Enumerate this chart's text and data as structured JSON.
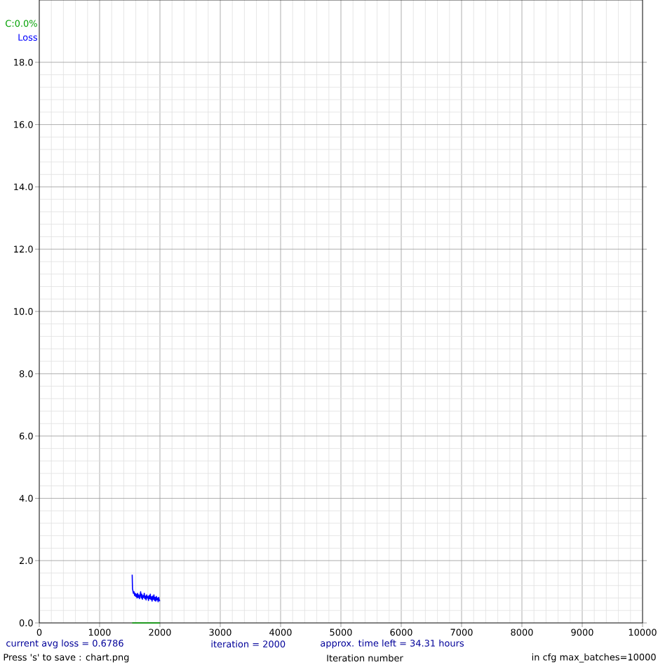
{
  "chart_data": {
    "type": "line",
    "x": [
      1540,
      1545,
      1550,
      1560,
      1570,
      1580,
      1590,
      1600,
      1610,
      1620,
      1630,
      1640,
      1650,
      1660,
      1670,
      1680,
      1690,
      1700,
      1710,
      1720,
      1730,
      1740,
      1750,
      1760,
      1770,
      1780,
      1790,
      1800,
      1810,
      1820,
      1830,
      1840,
      1850,
      1860,
      1870,
      1880,
      1890,
      1900,
      1910,
      1920,
      1930,
      1940,
      1950,
      1960,
      1970,
      1980,
      1990,
      2000
    ],
    "series": [
      {
        "name": "C:0.0%",
        "color": "#00a000",
        "values": [
          0,
          0,
          0,
          0,
          0,
          0,
          0,
          0,
          0,
          0,
          0,
          0,
          0,
          0,
          0,
          0,
          0,
          0,
          0,
          0,
          0,
          0,
          0,
          0,
          0,
          0,
          0,
          0,
          0,
          0,
          0,
          0,
          0,
          0,
          0,
          0,
          0,
          0,
          0,
          0,
          0,
          0,
          0,
          0,
          0,
          0,
          0,
          0
        ]
      },
      {
        "name": "Loss",
        "color": "#0000ff",
        "values": [
          1.55,
          1.1,
          1.05,
          0.95,
          1.0,
          0.88,
          0.95,
          0.85,
          0.92,
          0.8,
          0.95,
          0.82,
          0.9,
          0.78,
          0.88,
          1.0,
          0.8,
          0.92,
          0.76,
          0.88,
          0.82,
          0.95,
          0.78,
          0.86,
          0.74,
          0.9,
          0.8,
          0.85,
          0.72,
          0.88,
          0.78,
          0.92,
          0.75,
          0.84,
          0.7,
          0.86,
          0.76,
          0.9,
          0.72,
          0.82,
          0.7,
          0.85,
          0.74,
          0.8,
          0.68,
          0.82,
          0.72,
          0.7
        ]
      }
    ],
    "xlim": [
      0,
      10000
    ],
    "ylim": [
      0,
      20
    ],
    "xticks": [
      0,
      1000,
      2000,
      3000,
      4000,
      5000,
      6000,
      7000,
      8000,
      9000,
      10000
    ],
    "yticks": [
      {
        "value": 0,
        "label": "0.0"
      },
      {
        "value": 2,
        "label": "2.0"
      },
      {
        "value": 4,
        "label": "4.0"
      },
      {
        "value": 6,
        "label": "6.0"
      },
      {
        "value": 8,
        "label": "8.0"
      },
      {
        "value": 10,
        "label": "10.0"
      },
      {
        "value": 12,
        "label": "12.0"
      },
      {
        "value": 14,
        "label": "14.0"
      },
      {
        "value": 16,
        "label": "16.0"
      },
      {
        "value": 18,
        "label": "18.0"
      }
    ],
    "grid": true,
    "line_style": "solid",
    "marker": "none",
    "annotations": [
      "current avg loss = 0.6786",
      "iteration = 2000",
      "approx. time left = 34.31 hours",
      "Press 's' to save : chart.png",
      "Iteration number",
      "in cfg max_batches=10000"
    ]
  }
}
